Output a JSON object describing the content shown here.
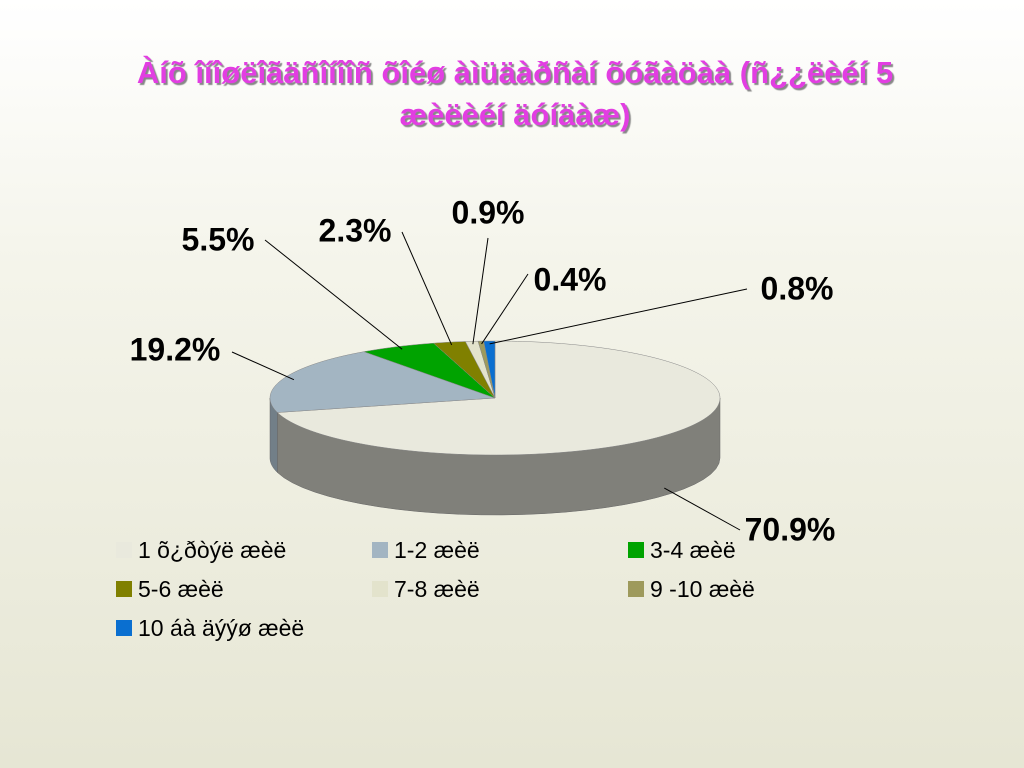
{
  "chart_data": {
    "type": "pie",
    "title": "Àíõ îíîøëîãäñîíîîñ õîéø àìüäàðñàí õóãàöàà (ñ¿¿ëèéí 5 æèëèéí äóíäàæ)",
    "categories": [
      "1 õ¿ðòýë æèë",
      "1-2 æèë",
      "3-4 æèë",
      "5-6 æèë",
      "7-8 æèë",
      "9 -10 æèë",
      "10 áà äýýø  æèë"
    ],
    "values": [
      70.9,
      19.2,
      5.5,
      2.3,
      0.9,
      0.4,
      0.8
    ],
    "value_labels": [
      "70.9%",
      "19.2%",
      "5.5%",
      "2.3%",
      "0.9%",
      "0.4%",
      "0.8%"
    ],
    "colors": [
      "#e9e9dd",
      "#a3b5c2",
      "#00a300",
      "#808000",
      "#e3e3cc",
      "#9e9a5c",
      "#0a6fd0"
    ]
  }
}
